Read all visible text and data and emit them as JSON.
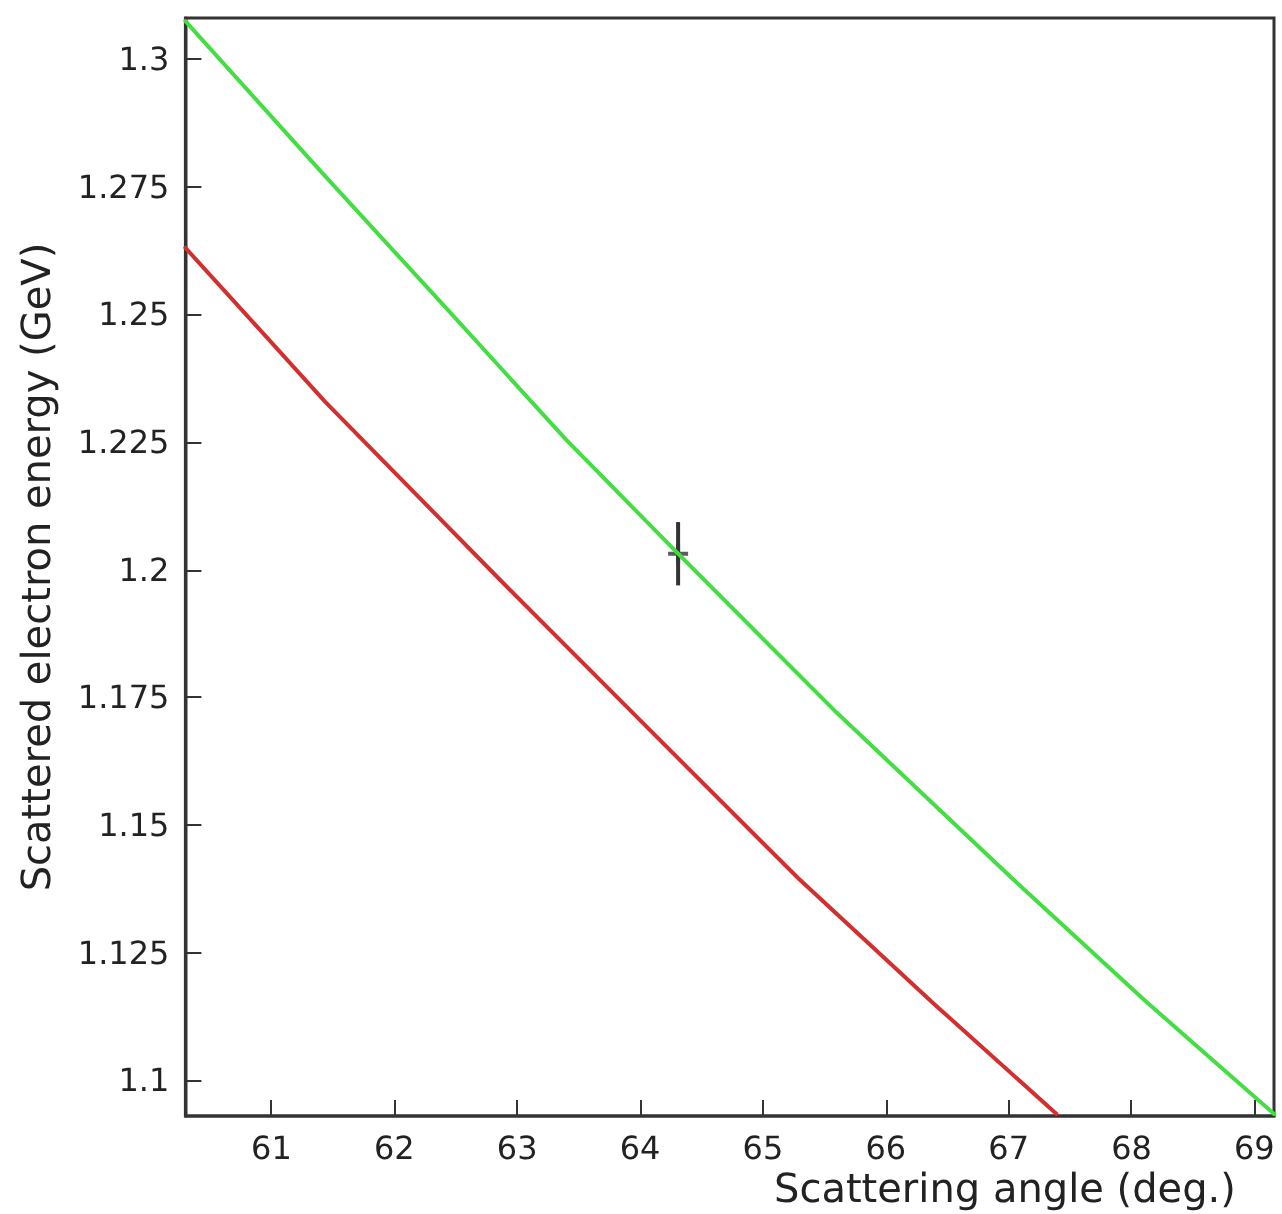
{
  "chart_data": {
    "type": "line",
    "xlabel": "Scattering angle (deg.)",
    "ylabel": "Scattered electron energy (GeV)",
    "xlim": [
      60.3,
      69.16
    ],
    "ylim": [
      1.093,
      1.308
    ],
    "xticks": [
      61,
      62,
      63,
      64,
      65,
      66,
      67,
      68,
      69
    ],
    "yticks": [
      1.1,
      1.125,
      1.15,
      1.175,
      1.2,
      1.225,
      1.25,
      1.275,
      1.3
    ],
    "grid": false,
    "line_style": "solid",
    "marker": "none",
    "series": [
      {
        "color": "#44dd44",
        "x": [
          60.3,
          61.4,
          62.38,
          63.4,
          64.31,
          65.6,
          67.03,
          68.1,
          69.16
        ],
        "values": [
          1.3074,
          1.278,
          1.2523,
          1.2254,
          1.2031,
          1.172,
          1.1395,
          1.1158,
          1.0934
        ]
      },
      {
        "color": "#d03030",
        "x": [
          60.3,
          61.44,
          62.86,
          64.0,
          65.29,
          66.4,
          67.39
        ],
        "values": [
          1.263,
          1.2328,
          1.198,
          1.1705,
          1.1395,
          1.1148,
          1.0934
        ]
      },
      {
        "type": "scatter",
        "color": "#333333",
        "marker": "cross",
        "x": [
          64.31
        ],
        "values": [
          1.2031
        ],
        "errors": [
          0.0062
        ]
      }
    ]
  }
}
